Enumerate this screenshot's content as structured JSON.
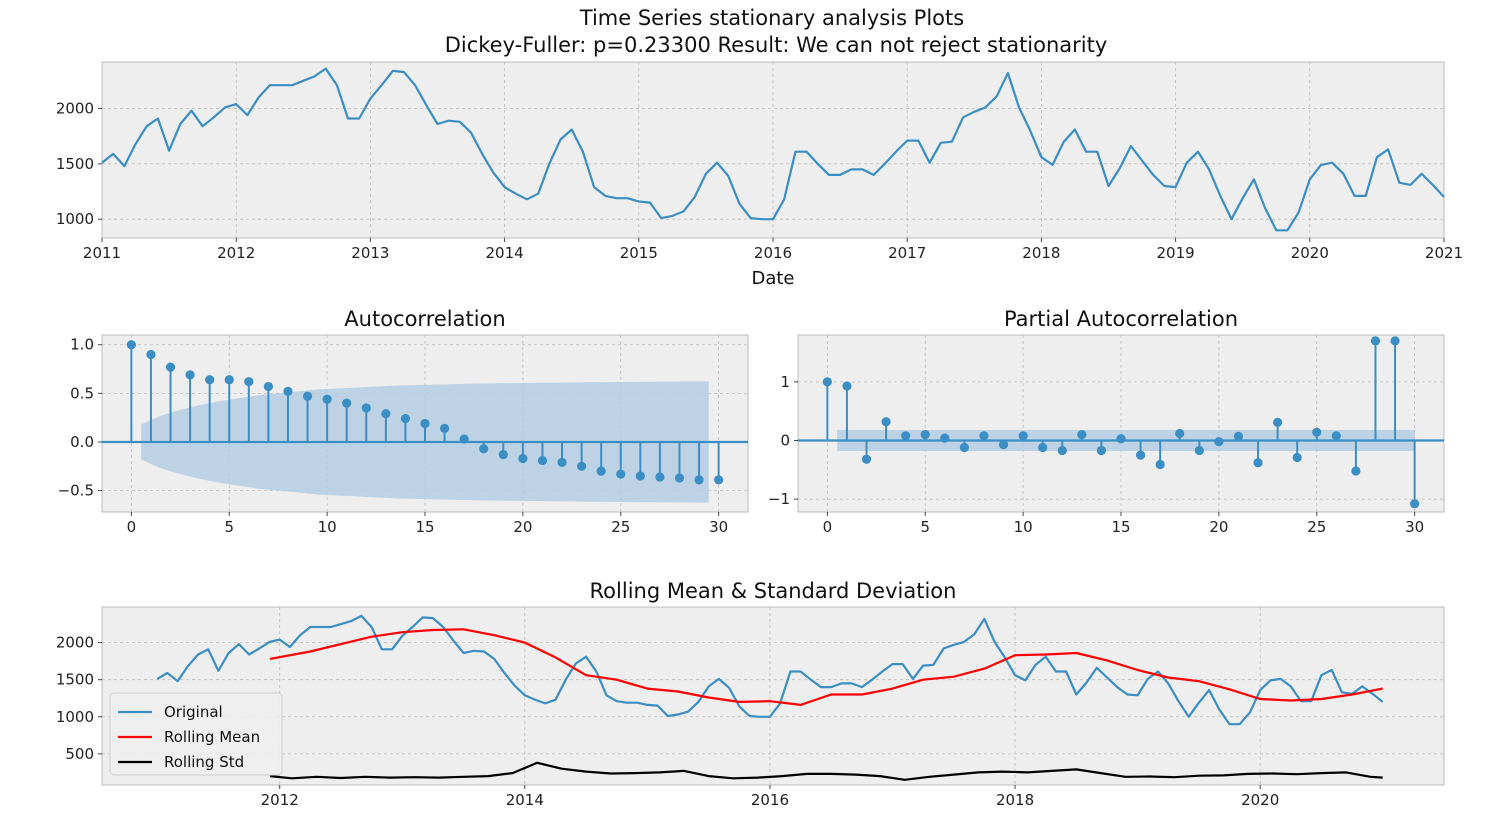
{
  "figure": {
    "title_line1": "Time Series stationary analysis Plots",
    "title_line2": "Dickey-Fuller: p=0.23300 Result: We can not reject stationarity"
  },
  "colors": {
    "series": "#3a8ec4",
    "rolling_mean": "#ff0000",
    "rolling_std": "#000000",
    "band": "#b4cde2",
    "axes_bg": "#eeeeee",
    "grid": "#bbbbbb"
  },
  "chart_data": [
    {
      "id": "timeseries",
      "type": "line",
      "xlabel": "Date",
      "ylabel": "",
      "xlim": [
        2011.0,
        2021.0
      ],
      "ylim": [
        830,
        2420
      ],
      "xticks": [
        "2011",
        "2012",
        "2013",
        "2014",
        "2015",
        "2016",
        "2017",
        "2018",
        "2019",
        "2020",
        "2021"
      ],
      "yticks": [
        "1000",
        "1500",
        "2000"
      ],
      "grid": true,
      "x": [
        "2011-01",
        "2011-02",
        "2011-03",
        "2011-04",
        "2011-05",
        "2011-06",
        "2011-07",
        "2011-08",
        "2011-09",
        "2011-10",
        "2011-11",
        "2011-12",
        "2012-01",
        "2012-02",
        "2012-03",
        "2012-04",
        "2012-05",
        "2012-06",
        "2012-07",
        "2012-08",
        "2012-09",
        "2012-10",
        "2012-11",
        "2012-12",
        "2013-01",
        "2013-02",
        "2013-03",
        "2013-04",
        "2013-05",
        "2013-06",
        "2013-07",
        "2013-08",
        "2013-09",
        "2013-10",
        "2013-11",
        "2013-12",
        "2014-01",
        "2014-02",
        "2014-03",
        "2014-04",
        "2014-05",
        "2014-06",
        "2014-07",
        "2014-08",
        "2014-09",
        "2014-10",
        "2014-11",
        "2014-12",
        "2015-01",
        "2015-02",
        "2015-03",
        "2015-04",
        "2015-05",
        "2015-06",
        "2015-07",
        "2015-08",
        "2015-09",
        "2015-10",
        "2015-11",
        "2015-12",
        "2016-01",
        "2016-02",
        "2016-03",
        "2016-04",
        "2016-05",
        "2016-06",
        "2016-07",
        "2016-08",
        "2016-09",
        "2016-10",
        "2016-11",
        "2016-12",
        "2017-01",
        "2017-02",
        "2017-03",
        "2017-04",
        "2017-05",
        "2017-06",
        "2017-07",
        "2017-08",
        "2017-09",
        "2017-10",
        "2017-11",
        "2017-12",
        "2018-01",
        "2018-02",
        "2018-03",
        "2018-04",
        "2018-05",
        "2018-06",
        "2018-07",
        "2018-08",
        "2018-09",
        "2018-10",
        "2018-11",
        "2018-12",
        "2019-01",
        "2019-02",
        "2019-03",
        "2019-04",
        "2019-05",
        "2019-06",
        "2019-07",
        "2019-08",
        "2019-09",
        "2019-10",
        "2019-11",
        "2019-12",
        "2020-01",
        "2020-02",
        "2020-03",
        "2020-04",
        "2020-05",
        "2020-06",
        "2020-07",
        "2020-08",
        "2020-09",
        "2020-10",
        "2020-11",
        "2020-12",
        "2021-01"
      ],
      "values": [
        1510,
        1590,
        1480,
        1680,
        1840,
        1910,
        1620,
        1860,
        1980,
        1840,
        1920,
        2010,
        2040,
        1940,
        2100,
        2210,
        2210,
        2210,
        2250,
        2290,
        2360,
        2210,
        1910,
        1910,
        2090,
        2210,
        2340,
        2330,
        2210,
        2030,
        1860,
        1890,
        1880,
        1780,
        1590,
        1420,
        1290,
        1230,
        1180,
        1230,
        1500,
        1720,
        1810,
        1610,
        1290,
        1210,
        1190,
        1190,
        1160,
        1150,
        1010,
        1030,
        1070,
        1200,
        1410,
        1510,
        1390,
        1140,
        1010,
        1000,
        1000,
        1180,
        1610,
        1610,
        1500,
        1400,
        1400,
        1450,
        1450,
        1400,
        1500,
        1610,
        1710,
        1710,
        1510,
        1690,
        1700,
        1920,
        1970,
        2010,
        2110,
        2320,
        2010,
        1800,
        1560,
        1490,
        1700,
        1810,
        1610,
        1610,
        1300,
        1460,
        1660,
        1530,
        1400,
        1300,
        1290,
        1510,
        1610,
        1450,
        1210,
        1000,
        1190,
        1360,
        1100,
        900,
        900,
        1060,
        1360,
        1490,
        1510,
        1410,
        1210,
        1210,
        1560,
        1630,
        1330,
        1310,
        1410,
        1310,
        1200
      ]
    },
    {
      "id": "acf",
      "type": "stem",
      "title": "Autocorrelation",
      "xlim": [
        -1.5,
        31.5
      ],
      "ylim": [
        -0.72,
        1.1
      ],
      "xticks": [
        "0",
        "5",
        "10",
        "15",
        "20",
        "25",
        "30"
      ],
      "yticks": [
        "−0.5",
        "0.0",
        "0.5",
        "1.0"
      ],
      "grid": true,
      "lags": [
        0,
        1,
        2,
        3,
        4,
        5,
        6,
        7,
        8,
        9,
        10,
        11,
        12,
        13,
        14,
        15,
        16,
        17,
        18,
        19,
        20,
        21,
        22,
        23,
        24,
        25,
        26,
        27,
        28,
        29,
        30
      ],
      "values": [
        1.0,
        0.9,
        0.77,
        0.69,
        0.64,
        0.64,
        0.62,
        0.57,
        0.52,
        0.47,
        0.44,
        0.4,
        0.35,
        0.29,
        0.24,
        0.19,
        0.14,
        0.03,
        -0.07,
        -0.13,
        -0.17,
        -0.19,
        -0.21,
        -0.25,
        -0.3,
        -0.33,
        -0.35,
        -0.36,
        -0.37,
        -0.39,
        -0.39
      ],
      "confint_upper": [
        0.18,
        0.27,
        0.33,
        0.38,
        0.42,
        0.45,
        0.48,
        0.5,
        0.52,
        0.54,
        0.55,
        0.56,
        0.57,
        0.58,
        0.585,
        0.59,
        0.595,
        0.6,
        0.602,
        0.605,
        0.607,
        0.61,
        0.612,
        0.614,
        0.616,
        0.618,
        0.62,
        0.621,
        0.622,
        0.623
      ]
    },
    {
      "id": "pacf",
      "type": "stem",
      "title": "Partial Autocorrelation",
      "xlim": [
        -1.5,
        31.5
      ],
      "ylim": [
        -1.22,
        1.8
      ],
      "xticks": [
        "0",
        "5",
        "10",
        "15",
        "20",
        "25",
        "30"
      ],
      "yticks": [
        "−1",
        "0",
        "1"
      ],
      "grid": true,
      "lags": [
        0,
        1,
        2,
        3,
        4,
        5,
        6,
        7,
        8,
        9,
        10,
        11,
        12,
        13,
        14,
        15,
        16,
        17,
        18,
        19,
        20,
        21,
        22,
        23,
        24,
        25,
        26,
        27,
        28,
        29,
        30
      ],
      "values": [
        1.0,
        0.93,
        -0.32,
        0.32,
        0.08,
        0.1,
        0.04,
        -0.12,
        0.08,
        -0.07,
        0.08,
        -0.12,
        -0.17,
        0.1,
        -0.17,
        0.03,
        -0.25,
        -0.41,
        0.12,
        -0.17,
        -0.02,
        0.07,
        -0.38,
        0.31,
        -0.29,
        0.14,
        0.08,
        -0.52,
        1.7,
        1.7,
        -1.08
      ],
      "conf": 0.18
    },
    {
      "id": "rolling",
      "type": "line",
      "title": "Rolling Mean & Standard Deviation",
      "xlim": [
        2010.55,
        2021.5
      ],
      "ylim": [
        80,
        2480
      ],
      "xticks": [
        "2012",
        "2014",
        "2016",
        "2018",
        "2020"
      ],
      "yticks": [
        "500",
        "1000",
        "1500",
        "2000"
      ],
      "grid": true,
      "legend": "lower-left",
      "series": [
        {
          "name": "Original",
          "key": "original"
        },
        {
          "name": "Rolling Mean",
          "key": "mean",
          "x": [
            2011.92,
            2012.25,
            2012.5,
            2012.75,
            2013.0,
            2013.25,
            2013.5,
            2013.75,
            2014.0,
            2014.25,
            2014.5,
            2014.75,
            2015.0,
            2015.25,
            2015.5,
            2015.75,
            2016.0,
            2016.25,
            2016.5,
            2016.75,
            2017.0,
            2017.25,
            2017.5,
            2017.75,
            2018.0,
            2018.25,
            2018.5,
            2018.75,
            2019.0,
            2019.25,
            2019.5,
            2019.75,
            2020.0,
            2020.25,
            2020.5,
            2020.75,
            2021.0
          ],
          "values": [
            1780,
            1880,
            1980,
            2080,
            2140,
            2170,
            2180,
            2100,
            2000,
            1800,
            1560,
            1500,
            1380,
            1340,
            1260,
            1200,
            1210,
            1160,
            1300,
            1300,
            1380,
            1500,
            1540,
            1650,
            1830,
            1840,
            1860,
            1760,
            1630,
            1530,
            1480,
            1370,
            1240,
            1220,
            1240,
            1300,
            1380
          ]
        },
        {
          "name": "Rolling Std",
          "key": "std",
          "x": [
            2011.92,
            2012.1,
            2012.3,
            2012.5,
            2012.7,
            2012.9,
            2013.1,
            2013.3,
            2013.5,
            2013.7,
            2013.9,
            2014.1,
            2014.3,
            2014.5,
            2014.7,
            2014.9,
            2015.1,
            2015.3,
            2015.5,
            2015.7,
            2015.9,
            2016.1,
            2016.3,
            2016.5,
            2016.7,
            2016.9,
            2017.1,
            2017.3,
            2017.5,
            2017.7,
            2017.9,
            2018.1,
            2018.3,
            2018.5,
            2018.7,
            2018.9,
            2019.1,
            2019.3,
            2019.5,
            2019.7,
            2019.9,
            2020.1,
            2020.3,
            2020.5,
            2020.7,
            2020.9,
            2021.0
          ],
          "values": [
            200,
            170,
            190,
            175,
            190,
            180,
            185,
            180,
            190,
            200,
            240,
            380,
            300,
            260,
            235,
            240,
            250,
            270,
            200,
            170,
            180,
            200,
            230,
            230,
            220,
            200,
            150,
            190,
            220,
            250,
            260,
            250,
            270,
            290,
            240,
            190,
            195,
            185,
            205,
            210,
            230,
            235,
            225,
            240,
            250,
            190,
            180
          ]
        }
      ]
    }
  ]
}
